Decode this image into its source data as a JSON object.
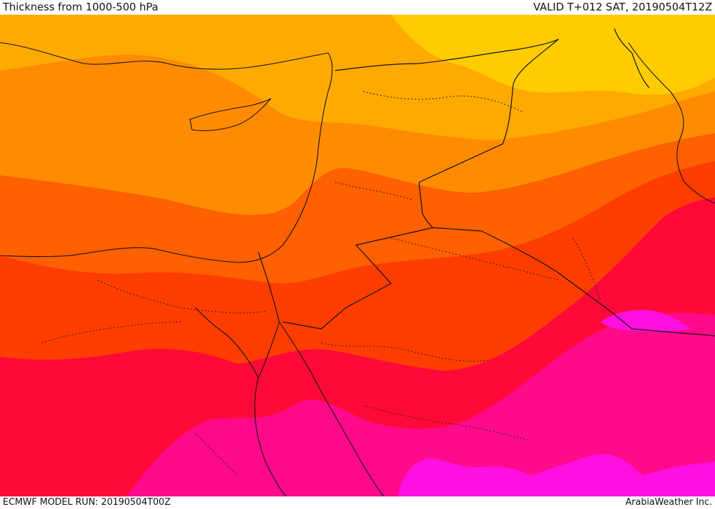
{
  "header": {
    "title": "Thickness from 1000-500 hPa",
    "valid": "VALID T+012 SAT, 20190504T12Z"
  },
  "footer": {
    "model_run": "ECMWF MODEL RUN: 20190504T00Z",
    "credit": "ArabiaWeather Inc."
  },
  "map": {
    "region": "Eastern Mediterranean / Levant / Arabia",
    "bands": [
      {
        "name": "band-yellow",
        "color": "#ffcc00"
      },
      {
        "name": "band-light-orange",
        "color": "#ffaa00"
      },
      {
        "name": "band-orange",
        "color": "#ff8c00"
      },
      {
        "name": "band-dark-orange",
        "color": "#ff6000"
      },
      {
        "name": "band-red-orange",
        "color": "#ff3d00"
      },
      {
        "name": "band-red",
        "color": "#ff0a38"
      },
      {
        "name": "band-magenta",
        "color": "#ff0a8a"
      },
      {
        "name": "band-bright-magenta",
        "color": "#ff10e0"
      }
    ]
  }
}
